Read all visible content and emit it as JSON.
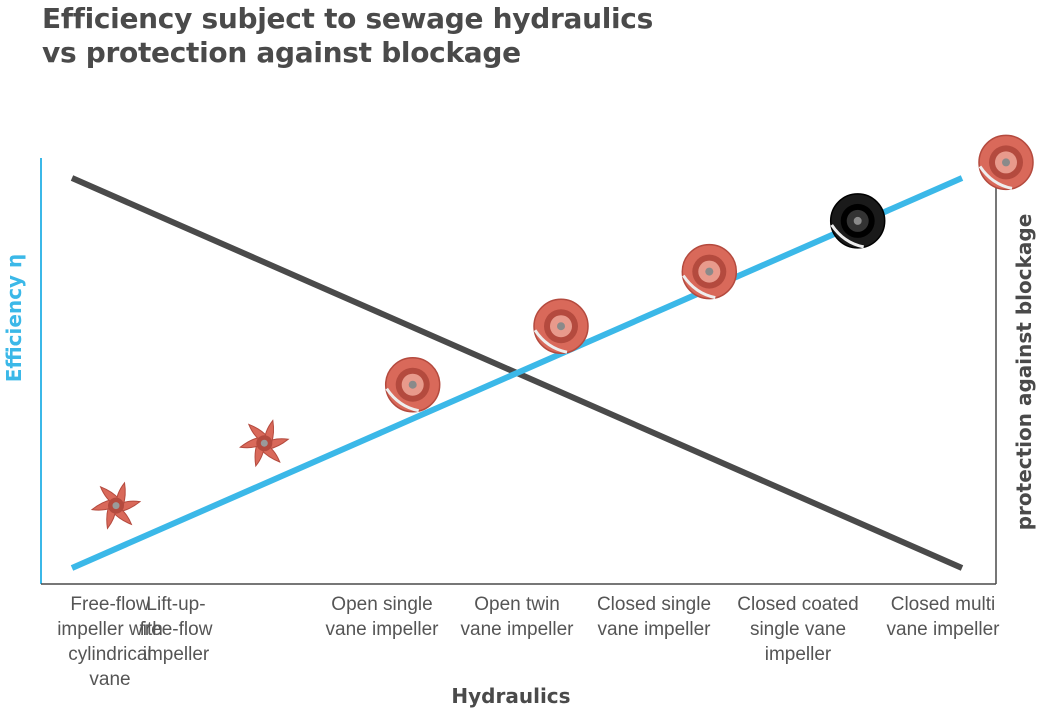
{
  "colors": {
    "efficiency": "#3bb8e8",
    "protection": "#4a4a4a",
    "impeller_copper": "#d9695a",
    "impeller_black": "#1a1a1a"
  },
  "chart_data": {
    "type": "line",
    "title": "Efficiency subject to sewage hydraulics vs protection against blockage",
    "title_lines": [
      "Efficiency subject to sewage hydraulics",
      "vs protection against blockage"
    ],
    "xlabel": "Hydraulics",
    "ylabel_left": "Efficiency η",
    "ylabel_right": "protection against blockage",
    "categories": [
      "Free-flow impeller with cylindrical vane",
      "Lift-up-free-flow impeller",
      "Open single vane impeller",
      "Open twin vane impeller",
      "Closed single vane impeller",
      "Closed coated single vane impeller",
      "Closed multi vane impeller"
    ],
    "category_lines": [
      [
        "Free-flow",
        "impeller with",
        "cylindrical",
        "vane"
      ],
      [
        "Lift-up-",
        "free-flow",
        "impeller"
      ],
      [
        "Open single",
        "vane impeller"
      ],
      [
        "Open twin",
        "vane impeller"
      ],
      [
        "Closed single",
        "vane impeller"
      ],
      [
        "Closed coated",
        "single vane",
        "impeller"
      ],
      [
        "Closed multi",
        "vane impeller"
      ]
    ],
    "ylim": [
      0,
      100
    ],
    "grid": false,
    "legend": "none",
    "series": [
      {
        "name": "Efficiency η",
        "axis": "left",
        "values": [
          0,
          16.67,
          33.33,
          50,
          66.67,
          83.33,
          100
        ]
      },
      {
        "name": "protection against blockage",
        "axis": "right",
        "values": [
          100,
          83.33,
          66.67,
          50,
          33.33,
          16.67,
          0
        ]
      }
    ],
    "impeller_icons": [
      "impeller-icon",
      "impeller-icon",
      "impeller-icon",
      "impeller-icon",
      "impeller-icon",
      "impeller-icon",
      "impeller-icon"
    ],
    "impeller_icon_levels": [
      {
        "category": 0,
        "value": 16,
        "color": "copper"
      },
      {
        "category": 1,
        "value": 32,
        "color": "copper"
      },
      {
        "category": 2,
        "value": 47,
        "color": "copper"
      },
      {
        "category": 3,
        "value": 62,
        "color": "copper"
      },
      {
        "category": 4,
        "value": 76,
        "color": "copper"
      },
      {
        "category": 5,
        "value": 89,
        "color": "black"
      },
      {
        "category": 6,
        "value": 104,
        "color": "copper"
      }
    ]
  }
}
